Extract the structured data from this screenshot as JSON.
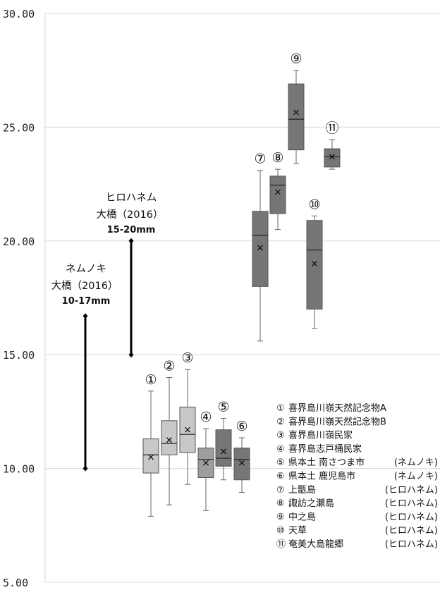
{
  "chart_data": {
    "type": "boxplot",
    "y_ticks": [
      "30.00",
      "25.00",
      "20.00",
      "15.00",
      "10.00",
      "5.00"
    ],
    "ylim": [
      5,
      30
    ],
    "grid": true,
    "colors": {
      "light": "#c8c8c8",
      "mid": "#9e9e9e",
      "dark": "#767676",
      "border": "#555555"
    },
    "boxes": [
      {
        "label": "①",
        "shade": "light",
        "min": 7.9,
        "q1": 9.8,
        "median": 10.6,
        "mean": 10.5,
        "q3": 11.3,
        "max": 13.4
      },
      {
        "label": "②",
        "shade": "light",
        "min": 8.4,
        "q1": 10.6,
        "median": 11.1,
        "mean": 11.25,
        "q3": 12.1,
        "max": 14.0
      },
      {
        "label": "③",
        "shade": "light",
        "min": 9.3,
        "q1": 10.7,
        "median": 11.5,
        "mean": 11.7,
        "q3": 12.7,
        "max": 14.35
      },
      {
        "label": "④",
        "shade": "mid",
        "min": 8.15,
        "q1": 9.6,
        "median": 10.4,
        "mean": 10.25,
        "q3": 10.9,
        "max": 11.75
      },
      {
        "label": "⑤",
        "shade": "dark",
        "min": 9.5,
        "q1": 10.1,
        "median": 10.45,
        "mean": 10.75,
        "q3": 11.7,
        "max": 12.2
      },
      {
        "label": "⑥",
        "shade": "dark",
        "min": 8.95,
        "q1": 9.5,
        "median": 10.4,
        "mean": 10.25,
        "q3": 10.9,
        "max": 11.35
      },
      {
        "label": "⑦",
        "shade": "dark",
        "min": 15.6,
        "q1": 18.0,
        "median": 20.25,
        "mean": 19.7,
        "q3": 21.3,
        "max": 23.1
      },
      {
        "label": "⑧",
        "shade": "dark",
        "min": 20.5,
        "q1": 21.2,
        "median": 22.45,
        "mean": 22.15,
        "q3": 22.85,
        "max": 23.15
      },
      {
        "label": "⑨",
        "shade": "dark",
        "min": 23.4,
        "q1": 24.0,
        "median": 25.35,
        "mean": 25.65,
        "q3": 26.9,
        "max": 27.5
      },
      {
        "label": "⑩",
        "shade": "dark",
        "min": 16.15,
        "q1": 17.0,
        "median": 19.6,
        "mean": 19.0,
        "q3": 20.9,
        "max": 21.1
      },
      {
        "label": "⑪",
        "shade": "dark",
        "min": 23.15,
        "q1": 23.25,
        "median": 23.7,
        "mean": 23.7,
        "q3": 24.05,
        "max": 24.45
      }
    ],
    "ranges": [
      {
        "name_line1": "ネムノキ",
        "name_line2": "大橋（2016）",
        "range_text": "10-17mm",
        "low": 10,
        "high": 16.7
      },
      {
        "name_line1": "ヒロハネム",
        "name_line2": "大橋（2016）",
        "range_text": "15-20mm",
        "low": 15,
        "high": 20
      }
    ],
    "legend": [
      {
        "num": "①",
        "name": "喜界島川嶺天然記念物A",
        "species": ""
      },
      {
        "num": "②",
        "name": "喜界島川嶺天然記念物B",
        "species": ""
      },
      {
        "num": "③",
        "name": "喜界島川嶺民家",
        "species": ""
      },
      {
        "num": "④",
        "name": "喜界島志戸桶民家",
        "species": ""
      },
      {
        "num": "⑤",
        "name": "県本土 南さつま市",
        "species": "(ネムノキ)"
      },
      {
        "num": "⑥",
        "name": "県本土 鹿児島市",
        "species": "(ネムノキ)"
      },
      {
        "num": "⑦",
        "name": "上甑島",
        "species": "(ヒロハネム)"
      },
      {
        "num": "⑧",
        "name": "諏訪之瀬島",
        "species": "(ヒロハネム)"
      },
      {
        "num": "⑨",
        "name": "中之島",
        "species": "(ヒロハネム)"
      },
      {
        "num": "⑩",
        "name": "天草",
        "species": "(ヒロハネム)"
      },
      {
        "num": "⑪",
        "name": "奄美大島龍郷",
        "species": "(ヒロハネム)"
      }
    ]
  }
}
